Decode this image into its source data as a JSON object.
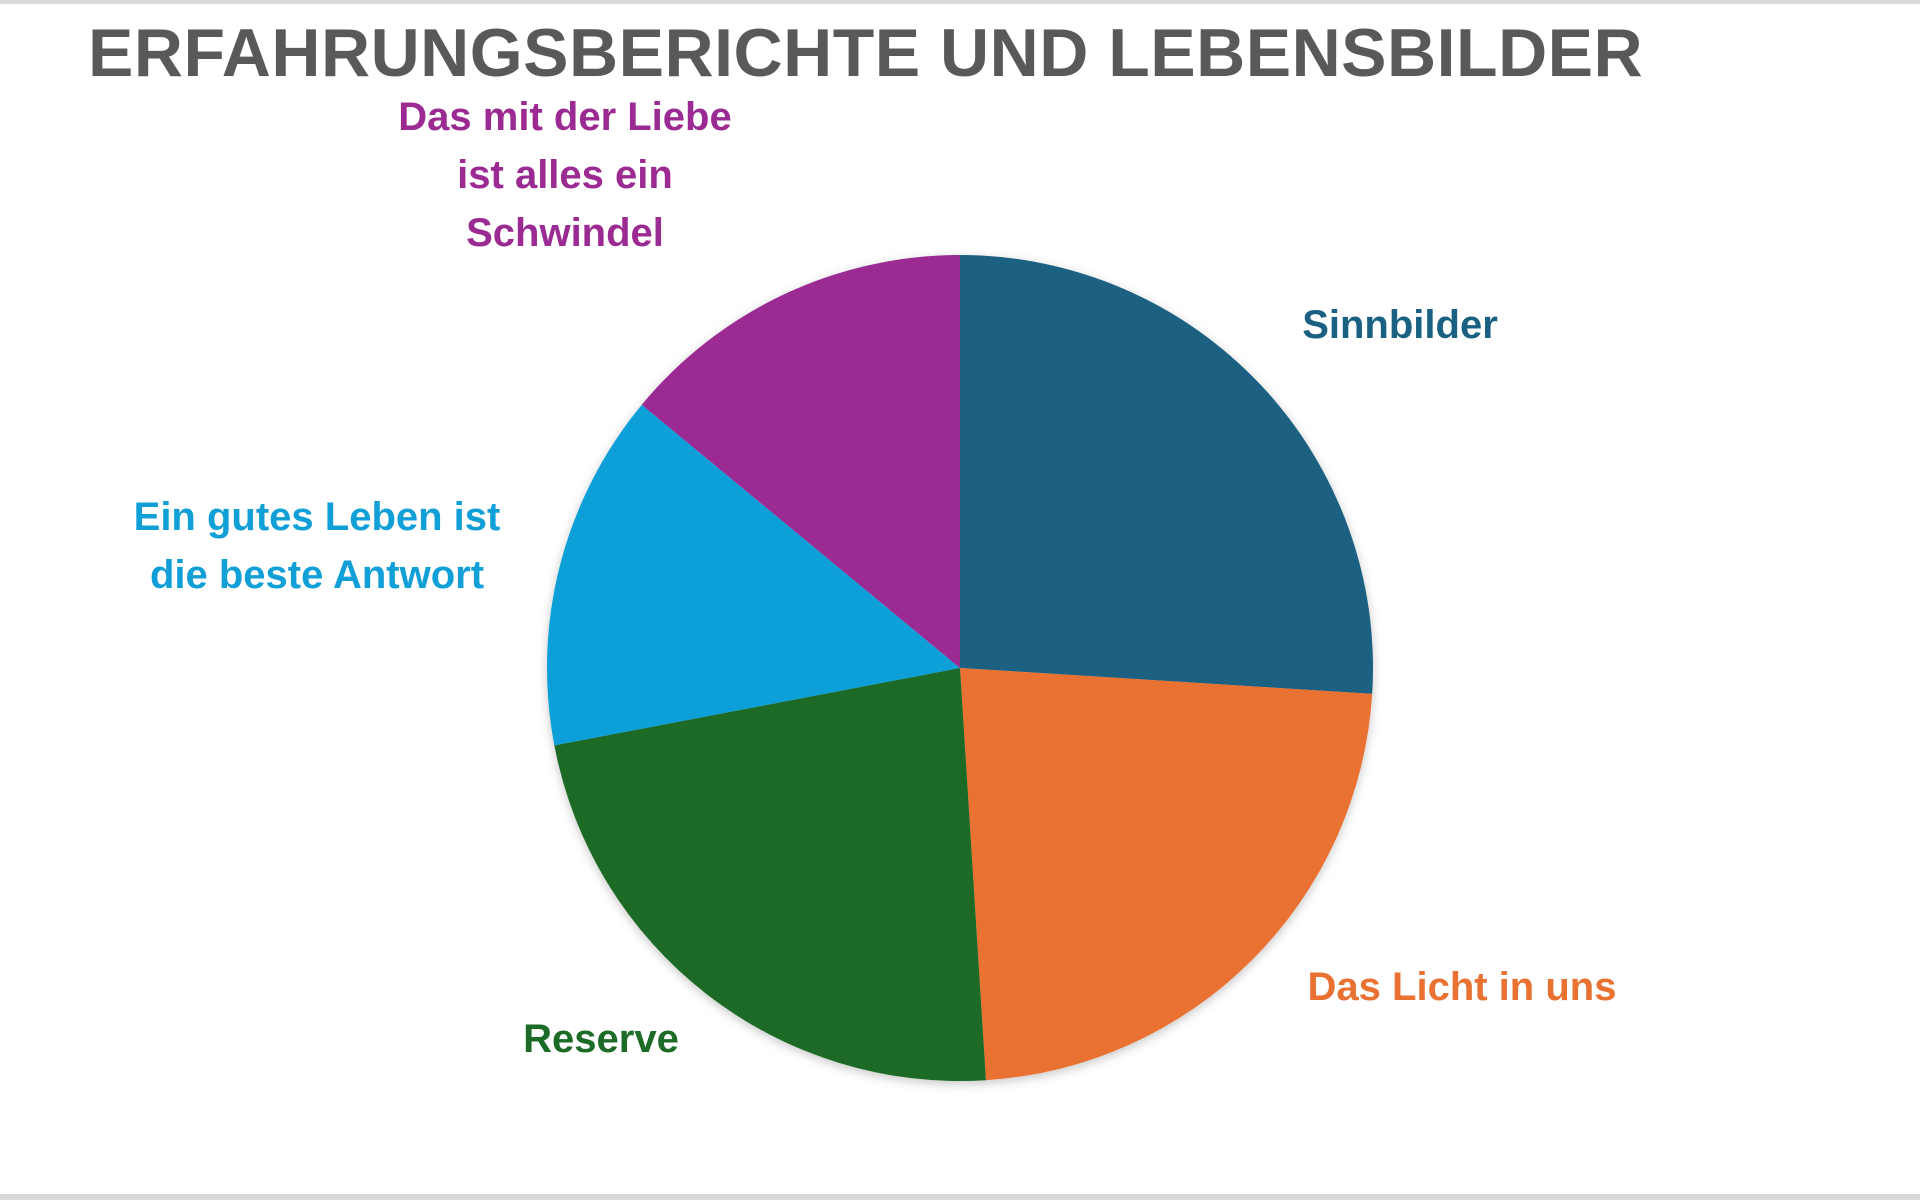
{
  "chart_data": {
    "type": "pie",
    "title": "ERFAHRUNGSBERICHTE UND LEBENSBILDER",
    "start_angle_deg": 0,
    "direction": "clockwise",
    "slices": [
      {
        "label": "Sinnbilder",
        "label_lines": [
          "Sinnbilder"
        ],
        "value": 26,
        "color": "#1a6082"
      },
      {
        "label": "Das Licht in uns",
        "label_lines": [
          "Das Licht in uns"
        ],
        "value": 23,
        "color": "#e97132"
      },
      {
        "label": "Reserve",
        "label_lines": [
          "Reserve"
        ],
        "value": 23,
        "color": "#1c6b26"
      },
      {
        "label": "Ein gutes Leben ist die beste Antwort",
        "label_lines": [
          "Ein gutes Leben ist",
          "die beste Antwort"
        ],
        "value": 14,
        "color": "#119fd8"
      },
      {
        "label": "Das mit der Liebe ist alles ein Schwindel",
        "label_lines": [
          "Das mit der Liebe",
          "ist alles ein",
          "Schwindel"
        ],
        "value": 14,
        "color": "#9b2b92"
      }
    ],
    "legend": "none",
    "data_labels": "category names outside slices"
  }
}
